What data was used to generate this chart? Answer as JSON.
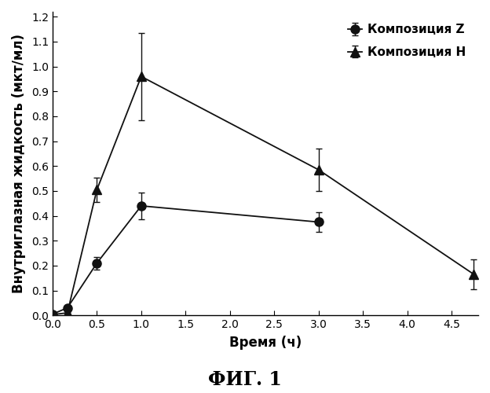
{
  "title": "ФИГ. 1",
  "xlabel": "Время (ч)",
  "ylabel": "Внутриглазная жидкость (мкт/мл)",
  "xlim": [
    0,
    4.8
  ],
  "ylim": [
    0,
    1.22
  ],
  "xticks": [
    0,
    0.5,
    1.0,
    1.5,
    2.0,
    2.5,
    3.0,
    3.5,
    4.0,
    4.5
  ],
  "yticks": [
    0,
    0.1,
    0.2,
    0.3,
    0.4,
    0.5,
    0.6,
    0.7,
    0.8,
    0.9,
    1.0,
    1.1,
    1.2
  ],
  "series_Z": {
    "label": "Композиция Z",
    "x": [
      0,
      0.167,
      0.5,
      1.0,
      3.0
    ],
    "y": [
      0.005,
      0.03,
      0.21,
      0.44,
      0.375
    ],
    "yerr": [
      0.003,
      0.005,
      0.025,
      0.055,
      0.04
    ],
    "marker": "o",
    "color": "#111111",
    "markersize": 8,
    "linewidth": 1.3
  },
  "series_H": {
    "label": "Композиция Н",
    "x": [
      0,
      0.167,
      0.5,
      1.0,
      3.0,
      4.75
    ],
    "y": [
      0.003,
      0.01,
      0.505,
      0.96,
      0.585,
      0.165
    ],
    "yerr": [
      0.002,
      0.003,
      0.05,
      0.175,
      0.085,
      0.06
    ],
    "marker": "^",
    "color": "#111111",
    "markersize": 9,
    "linewidth": 1.3
  },
  "background_color": "#ffffff",
  "legend_fontsize": 11,
  "axis_fontsize": 12,
  "tick_fontsize": 10,
  "title_fontsize": 17
}
